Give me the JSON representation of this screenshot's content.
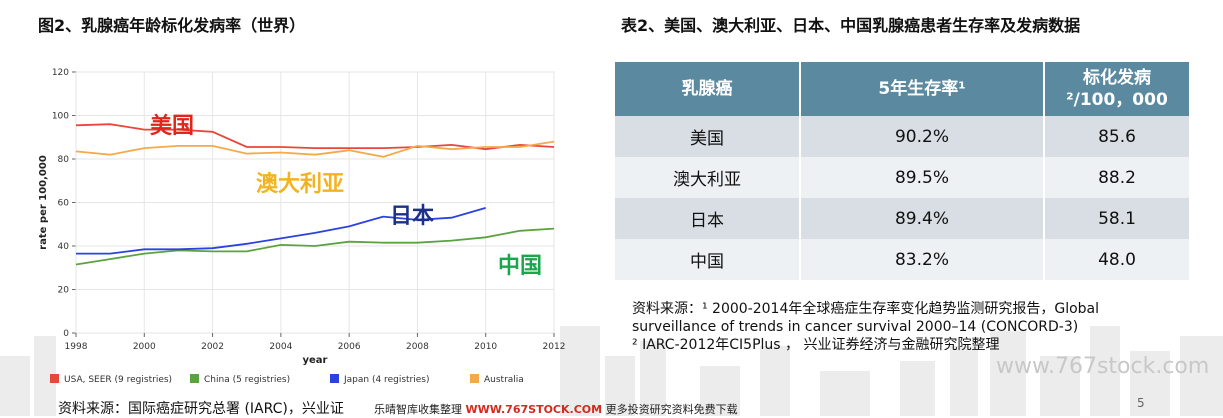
{
  "figure_title": "图2、乳腺癌年龄标化发病率（世界）",
  "table_title": "表2、美国、澳大利亚、日本、中国乳腺癌患者生存率及发病数据",
  "chart_data": {
    "type": "line",
    "title": "",
    "xlabel": "year",
    "ylabel": "rate per 100,000",
    "xlim": [
      1998,
      2012
    ],
    "ylim": [
      0,
      120
    ],
    "x_ticks": [
      1998,
      2000,
      2002,
      2004,
      2006,
      2008,
      2010,
      2012
    ],
    "y_ticks": [
      0,
      20,
      40,
      60,
      80,
      100,
      120
    ],
    "grid": true,
    "legend_position": "bottom",
    "series": [
      {
        "name": "USA, SEER (9 registries)",
        "color": "#e8473a",
        "x": [
          1998,
          1999,
          2000,
          2001,
          2002,
          2003,
          2004,
          2005,
          2006,
          2007,
          2008,
          2009,
          2010,
          2011,
          2012
        ],
        "y": [
          95.5,
          96,
          93.5,
          93.5,
          92.5,
          85.5,
          85.5,
          85,
          85,
          85,
          85.5,
          86.5,
          84.5,
          86.5,
          85.5
        ]
      },
      {
        "name": "China (5 registries)",
        "color": "#5aa33e",
        "x": [
          1998,
          1999,
          2000,
          2001,
          2002,
          2003,
          2004,
          2005,
          2006,
          2007,
          2008,
          2009,
          2010,
          2011,
          2012
        ],
        "y": [
          31.5,
          34,
          36.5,
          38,
          37.5,
          37.5,
          40.5,
          40,
          42,
          41.5,
          41.5,
          42.5,
          44,
          47,
          48
        ]
      },
      {
        "name": "Japan (4 registries)",
        "color": "#2b41e0",
        "x": [
          1998,
          1999,
          2000,
          2001,
          2002,
          2003,
          2004,
          2005,
          2006,
          2007,
          2008,
          2009,
          2010
        ],
        "y": [
          36.5,
          36.5,
          38.5,
          38.5,
          39,
          41,
          43.5,
          46,
          49,
          53.5,
          52,
          53,
          57.5
        ]
      },
      {
        "name": "Australia",
        "color": "#f4a94a",
        "x": [
          1998,
          1999,
          2000,
          2001,
          2002,
          2003,
          2004,
          2005,
          2006,
          2007,
          2008,
          2009,
          2010,
          2011,
          2012
        ],
        "y": [
          83.5,
          82,
          85,
          86,
          86,
          82.5,
          83,
          82,
          84,
          81,
          86,
          84.5,
          85.5,
          85.5,
          88
        ]
      }
    ],
    "annotations": [
      {
        "text": "美国",
        "color": "#e0251c"
      },
      {
        "text": "澳大利亚",
        "color": "#f3b321"
      },
      {
        "text": "日本",
        "color": "#1c2f8a"
      },
      {
        "text": "中国",
        "color": "#1aa64a"
      }
    ]
  },
  "table": {
    "headers": [
      "乳腺癌",
      "5年生存率¹",
      "标化发病²/100，000"
    ],
    "rows": [
      [
        "美国",
        "90.2%",
        "85.6"
      ],
      [
        "澳大利亚",
        "89.5%",
        "88.2"
      ],
      [
        "日本",
        "89.4%",
        "58.1"
      ],
      [
        "中国",
        "83.2%",
        "48.0"
      ]
    ]
  },
  "source_right": {
    "line1": "资料来源：¹ 2000-2014年全球癌症生存率变化趋势监测研究报告，Global",
    "line2": "surveillance of trends in cancer survival 2000–14 (CONCORD-3)",
    "line3": "² IARC-2012年CI5Plus ，  兴业证券经济与金融研究院整理"
  },
  "source_left": "资料来源：国际癌症研究总署 (IARC)，兴业证",
  "watermark": "www.767stock.com",
  "ad": {
    "part1": "乐晴智库收集整理",
    "part2": "WWW.767STOCK.COM",
    "part3": "更多投资研究资料免费下载"
  },
  "page_number": "5"
}
